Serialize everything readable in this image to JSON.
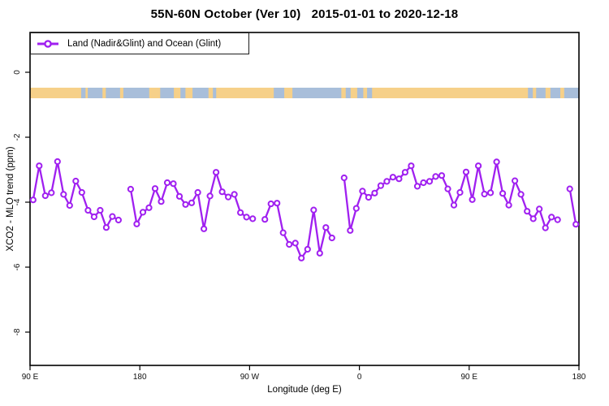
{
  "figure": {
    "title": "55N-60N October (Ver 10)   2015-01-01 to 2020-12-18",
    "background": "#ffffff"
  },
  "legend": {
    "label": "Land (Nadir&Glint) and Ocean (Glint)",
    "marker_color": "#A020F0"
  },
  "chart_data": {
    "type": "line",
    "title": "55N-60N October (Ver 10)   2015-01-01 to 2020-12-18",
    "xlabel": "Longitude (deg E)",
    "ylabel": "XCO2 - MLO trend (ppm)",
    "legend_position": "top-left",
    "grid": false,
    "xlim": [
      0,
      450
    ],
    "ylim": [
      -9.025,
      1.225
    ],
    "x_ticks": [
      {
        "deg": 0,
        "label": "90 E"
      },
      {
        "deg": 90,
        "label": "180"
      },
      {
        "deg": 180,
        "label": "90 W"
      },
      {
        "deg": 270,
        "label": "0"
      },
      {
        "deg": 360,
        "label": "90 E"
      },
      {
        "deg": 450,
        "label": "180"
      }
    ],
    "y_ticks": [
      {
        "value": 0,
        "label": "0"
      },
      {
        "value": -2,
        "label": "-2"
      },
      {
        "value": -4,
        "label": "-4"
      },
      {
        "value": -6,
        "label": "-6"
      },
      {
        "value": -8,
        "label": "-8"
      }
    ],
    "series": [
      {
        "name": "Land (Nadir&Glint) and Ocean (Glint)",
        "color": "#A020F0",
        "marker": "open-circle",
        "x_start_deg": 2.5,
        "x_step_deg": 5,
        "values": [
          -3.93,
          -2.88,
          -3.8,
          -3.71,
          -2.75,
          -3.76,
          -4.1,
          -3.35,
          -3.7,
          -4.25,
          -4.45,
          -4.25,
          -4.78,
          -4.44,
          -4.55,
          null,
          -3.6,
          -4.67,
          -4.31,
          -4.17,
          -3.58,
          -3.98,
          -3.4,
          -3.43,
          -3.82,
          -4.07,
          -4.02,
          -3.7,
          -4.82,
          -3.81,
          -3.08,
          -3.68,
          -3.84,
          -3.76,
          -4.32,
          -4.46,
          -4.51,
          null,
          -4.53,
          -4.05,
          -4.03,
          -4.94,
          -5.3,
          -5.26,
          -5.72,
          -5.45,
          -4.24,
          -5.57,
          -4.78,
          -5.1,
          null,
          -3.25,
          -4.87,
          -4.19,
          -3.66,
          -3.85,
          -3.72,
          -3.49,
          -3.36,
          -3.23,
          -3.28,
          -3.08,
          -2.88,
          -3.51,
          -3.4,
          -3.36,
          -3.21,
          -3.18,
          -3.59,
          -4.09,
          -3.7,
          -3.07,
          -3.92,
          -2.88,
          -3.75,
          -3.71,
          -2.76,
          -3.73,
          -4.09,
          -3.34,
          -3.76,
          -4.28,
          -4.51,
          -4.21,
          -4.79,
          -4.46,
          -4.54,
          null,
          -3.59,
          -4.68
        ]
      }
    ],
    "surface_band": {
      "y_range_ppm": [
        -0.475,
        -0.8
      ],
      "land_color": "#F6D089",
      "ocean_color": "#A8BEDA",
      "ocean_segments_deg": [
        [
          41.9,
          45.5
        ],
        [
          47.3,
          59.4
        ],
        [
          62.1,
          73.8
        ],
        [
          76.5,
          97.7
        ],
        [
          106.7,
          117.9
        ],
        [
          123.3,
          127.4
        ],
        [
          133.2,
          146.3
        ],
        [
          149.9,
          152.6
        ],
        [
          199.8,
          208.4
        ],
        [
          215.1,
          255.2
        ],
        [
          258.8,
          262.8
        ],
        [
          268.2,
          273.2
        ],
        [
          276.3,
          280.4
        ],
        [
          408.2,
          412.2
        ],
        [
          414.9,
          422.6
        ],
        [
          426.6,
          434.7
        ],
        [
          437.9,
          450.0
        ]
      ]
    }
  }
}
